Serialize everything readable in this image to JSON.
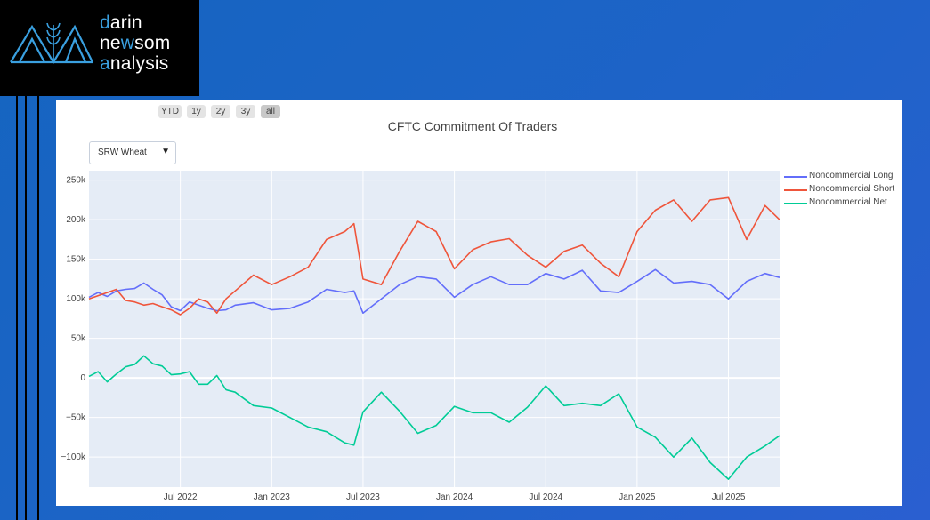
{
  "brand": {
    "line1": {
      "accent": "d",
      "rest": "arin"
    },
    "line2": {
      "pre": "ne",
      "accent": "w",
      "rest": "som"
    },
    "line3": {
      "accent": "a",
      "rest": "nalysis"
    },
    "accent_color": "#3aa0e0"
  },
  "range_buttons": [
    "YTD",
    "1y",
    "2y",
    "3y",
    "all"
  ],
  "active_range": "all",
  "dropdown": {
    "selected": "SRW Wheat",
    "arrow": "▼"
  },
  "chart_data": {
    "type": "line",
    "title": "CFTC Commitment Of Traders",
    "xlabel": "",
    "ylabel": "",
    "x_range": [
      2022.0,
      2025.78
    ],
    "ylim": [
      -138000,
      262000
    ],
    "y_ticks": [
      -100000,
      -50000,
      0,
      50000,
      100000,
      150000,
      200000,
      250000
    ],
    "y_tick_labels": [
      "−100k",
      "−50k",
      "0",
      "50k",
      "100k",
      "150k",
      "200k",
      "250k"
    ],
    "x_ticks": [
      2022.5,
      2023.0,
      2023.5,
      2024.0,
      2024.5,
      2025.0,
      2025.5
    ],
    "x_tick_labels": [
      "Jul 2022",
      "Jan 2023",
      "Jul 2023",
      "Jan 2024",
      "Jul 2024",
      "Jan 2025",
      "Jul 2025"
    ],
    "legend_position": "top-right, outside plot",
    "series": [
      {
        "name": "Noncommercial Long",
        "color": "#636efa",
        "x": [
          2022.0,
          2022.05,
          2022.1,
          2022.15,
          2022.2,
          2022.25,
          2022.3,
          2022.35,
          2022.4,
          2022.45,
          2022.5,
          2022.55,
          2022.6,
          2022.65,
          2022.7,
          2022.75,
          2022.8,
          2022.9,
          2023.0,
          2023.1,
          2023.2,
          2023.3,
          2023.4,
          2023.45,
          2023.5,
          2023.6,
          2023.7,
          2023.8,
          2023.9,
          2024.0,
          2024.1,
          2024.2,
          2024.3,
          2024.4,
          2024.5,
          2024.6,
          2024.7,
          2024.8,
          2024.9,
          2025.0,
          2025.1,
          2025.2,
          2025.3,
          2025.4,
          2025.5,
          2025.6,
          2025.7,
          2025.78
        ],
        "values": [
          102000,
          108000,
          103000,
          110000,
          112000,
          113000,
          120000,
          112000,
          105000,
          90000,
          85000,
          96000,
          92000,
          88000,
          85000,
          86000,
          92000,
          95000,
          86000,
          88000,
          96000,
          112000,
          108000,
          110000,
          82000,
          100000,
          118000,
          128000,
          125000,
          102000,
          118000,
          128000,
          118000,
          118000,
          132000,
          125000,
          136000,
          110000,
          108000,
          122000,
          137000,
          120000,
          122000,
          118000,
          100000,
          122000,
          132000,
          127000
        ]
      },
      {
        "name": "Noncommercial Short",
        "color": "#ef553b",
        "x": [
          2022.0,
          2022.05,
          2022.1,
          2022.15,
          2022.2,
          2022.25,
          2022.3,
          2022.35,
          2022.4,
          2022.45,
          2022.5,
          2022.55,
          2022.6,
          2022.65,
          2022.7,
          2022.75,
          2022.8,
          2022.9,
          2023.0,
          2023.1,
          2023.2,
          2023.3,
          2023.4,
          2023.45,
          2023.5,
          2023.6,
          2023.7,
          2023.8,
          2023.9,
          2024.0,
          2024.1,
          2024.2,
          2024.3,
          2024.4,
          2024.5,
          2024.6,
          2024.7,
          2024.8,
          2024.9,
          2025.0,
          2025.1,
          2025.2,
          2025.3,
          2025.4,
          2025.5,
          2025.6,
          2025.7,
          2025.78
        ],
        "values": [
          100000,
          104000,
          108000,
          112000,
          98000,
          96000,
          92000,
          94000,
          90000,
          86000,
          80000,
          88000,
          100000,
          96000,
          82000,
          100000,
          110000,
          130000,
          118000,
          128000,
          140000,
          175000,
          185000,
          195000,
          125000,
          118000,
          160000,
          198000,
          185000,
          138000,
          162000,
          172000,
          176000,
          155000,
          140000,
          160000,
          168000,
          145000,
          128000,
          185000,
          212000,
          225000,
          198000,
          225000,
          228000,
          175000,
          218000,
          200000
        ]
      },
      {
        "name": "Noncommercial Net",
        "color": "#00cc96",
        "x": [
          2022.0,
          2022.05,
          2022.1,
          2022.15,
          2022.2,
          2022.25,
          2022.3,
          2022.35,
          2022.4,
          2022.45,
          2022.5,
          2022.55,
          2022.6,
          2022.65,
          2022.7,
          2022.75,
          2022.8,
          2022.9,
          2023.0,
          2023.1,
          2023.2,
          2023.3,
          2023.4,
          2023.45,
          2023.5,
          2023.6,
          2023.7,
          2023.8,
          2023.9,
          2024.0,
          2024.1,
          2024.2,
          2024.3,
          2024.4,
          2024.5,
          2024.6,
          2024.7,
          2024.8,
          2024.9,
          2025.0,
          2025.1,
          2025.2,
          2025.3,
          2025.4,
          2025.5,
          2025.6,
          2025.7,
          2025.78
        ],
        "values": [
          2000,
          8000,
          -5000,
          5000,
          14000,
          17000,
          28000,
          18000,
          15000,
          4000,
          5000,
          8000,
          -8000,
          -8000,
          3000,
          -15000,
          -18000,
          -35000,
          -38000,
          -50000,
          -62000,
          -68000,
          -82000,
          -85000,
          -43000,
          -18000,
          -42000,
          -70000,
          -60000,
          -36000,
          -44000,
          -44000,
          -56000,
          -37000,
          -10000,
          -35000,
          -32000,
          -35000,
          -20000,
          -62000,
          -75000,
          -100000,
          -76000,
          -107000,
          -128000,
          -100000,
          -86000,
          -73000
        ]
      }
    ]
  }
}
